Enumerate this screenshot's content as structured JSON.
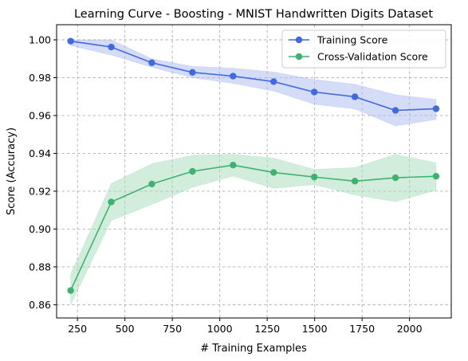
{
  "chart_data": {
    "type": "line",
    "title": "Learning Curve - Boosting - MNIST Handwritten Digits Dataset",
    "xlabel": "# Training Examples",
    "ylabel": "Score (Accuracy)",
    "xlim": [
      140,
      2220
    ],
    "ylim": [
      0.853,
      1.008
    ],
    "xticks": [
      250,
      500,
      750,
      1000,
      1250,
      1500,
      1750,
      2000
    ],
    "xtick_labels": [
      "250",
      "500",
      "750",
      "1000",
      "1250",
      "1500",
      "1750",
      "2000"
    ],
    "yticks": [
      0.86,
      0.88,
      0.9,
      0.92,
      0.94,
      0.96,
      0.98,
      1.0
    ],
    "ytick_labels": [
      "0.86",
      "0.88",
      "0.90",
      "0.92",
      "0.94",
      "0.96",
      "0.98",
      "1.00"
    ],
    "grid": true,
    "legend_position": "top-right",
    "x": [
      214,
      428,
      642,
      856,
      1070,
      1284,
      1498,
      1712,
      1926,
      2140
    ],
    "series": [
      {
        "name": "Training Score",
        "color": "#4169e1",
        "band_color": "#aab9f0",
        "values": [
          0.9993,
          0.9962,
          0.9879,
          0.9828,
          0.9808,
          0.9779,
          0.9724,
          0.9699,
          0.9627,
          0.9636
        ],
        "band_upper": [
          1.0,
          1.0,
          0.99,
          0.986,
          0.985,
          0.983,
          0.979,
          0.9765,
          0.971,
          0.9685
        ],
        "band_lower": [
          0.997,
          0.992,
          0.9855,
          0.98,
          0.977,
          0.973,
          0.966,
          0.9635,
          0.9545,
          0.958
        ]
      },
      {
        "name": "Cross-Validation Score",
        "color": "#3cb371",
        "band_color": "#a8dcbc",
        "values": [
          0.8675,
          0.9143,
          0.9238,
          0.9305,
          0.9338,
          0.9299,
          0.9275,
          0.9253,
          0.9271,
          0.9279
        ],
        "band_upper": [
          0.876,
          0.924,
          0.9345,
          0.939,
          0.9395,
          0.9375,
          0.9315,
          0.9325,
          0.9395,
          0.935
        ],
        "band_lower": [
          0.86,
          0.9045,
          0.913,
          0.922,
          0.928,
          0.9215,
          0.9235,
          0.918,
          0.9145,
          0.9205
        ]
      }
    ]
  }
}
